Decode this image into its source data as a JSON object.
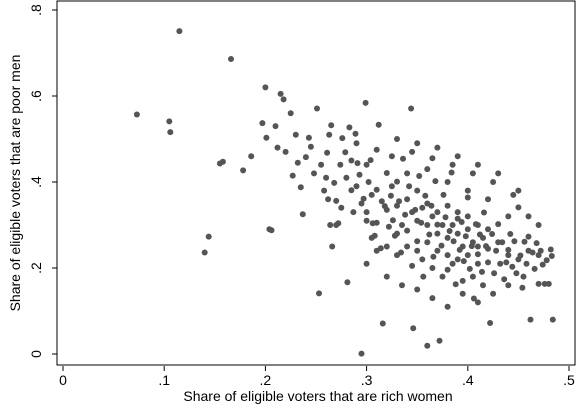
{
  "chart_data": {
    "type": "scatter",
    "title": "",
    "xlabel": "Share of eligible voters that are rich women",
    "ylabel": "Share of eligible voters that are poor men",
    "xlim": [
      0,
      0.5
    ],
    "ylim": [
      0,
      0.8
    ],
    "xticks": [
      {
        "value": 0,
        "label": "0"
      },
      {
        "value": 0.1,
        "label": ".1"
      },
      {
        "value": 0.2,
        "label": ".2"
      },
      {
        "value": 0.3,
        "label": ".3"
      },
      {
        "value": 0.4,
        "label": ".4"
      },
      {
        "value": 0.5,
        "label": ".5"
      }
    ],
    "yticks": [
      {
        "value": 0,
        "label": "0"
      },
      {
        "value": 0.2,
        "label": ".2"
      },
      {
        "value": 0.4,
        "label": ".4"
      },
      {
        "value": 0.6,
        "label": ".6"
      },
      {
        "value": 0.8,
        "label": ".8"
      }
    ],
    "grid": false,
    "marker_color": "#555555",
    "points": [
      [
        0.073,
        0.557
      ],
      [
        0.105,
        0.541
      ],
      [
        0.106,
        0.516
      ],
      [
        0.115,
        0.751
      ],
      [
        0.14,
        0.236
      ],
      [
        0.144,
        0.273
      ],
      [
        0.155,
        0.443
      ],
      [
        0.158,
        0.447
      ],
      [
        0.166,
        0.686
      ],
      [
        0.178,
        0.427
      ],
      [
        0.186,
        0.46
      ],
      [
        0.197,
        0.537
      ],
      [
        0.2,
        0.62
      ],
      [
        0.201,
        0.503
      ],
      [
        0.204,
        0.29
      ],
      [
        0.206,
        0.288
      ],
      [
        0.21,
        0.53
      ],
      [
        0.212,
        0.48
      ],
      [
        0.215,
        0.605
      ],
      [
        0.218,
        0.592
      ],
      [
        0.22,
        0.47
      ],
      [
        0.225,
        0.56
      ],
      [
        0.227,
        0.415
      ],
      [
        0.23,
        0.51
      ],
      [
        0.232,
        0.445
      ],
      [
        0.235,
        0.388
      ],
      [
        0.237,
        0.325
      ],
      [
        0.24,
        0.458
      ],
      [
        0.243,
        0.503
      ],
      [
        0.245,
        0.482
      ],
      [
        0.248,
        0.42
      ],
      [
        0.251,
        0.571
      ],
      [
        0.253,
        0.141
      ],
      [
        0.255,
        0.44
      ],
      [
        0.258,
        0.38
      ],
      [
        0.261,
        0.468
      ],
      [
        0.263,
        0.51
      ],
      [
        0.265,
        0.532
      ],
      [
        0.268,
        0.398
      ],
      [
        0.27,
        0.356
      ],
      [
        0.272,
        0.304
      ],
      [
        0.274,
        0.44
      ],
      [
        0.276,
        0.502
      ],
      [
        0.279,
        0.469
      ],
      [
        0.281,
        0.167
      ],
      [
        0.283,
        0.527
      ],
      [
        0.285,
        0.381
      ],
      [
        0.287,
        0.33
      ],
      [
        0.289,
        0.512
      ],
      [
        0.291,
        0.444
      ],
      [
        0.293,
        0.417
      ],
      [
        0.295,
        0.001
      ],
      [
        0.297,
        0.361
      ],
      [
        0.299,
        0.584
      ],
      [
        0.3,
        0.33
      ],
      [
        0.302,
        0.4
      ],
      [
        0.304,
        0.451
      ],
      [
        0.306,
        0.304
      ],
      [
        0.308,
        0.275
      ],
      [
        0.31,
        0.382
      ],
      [
        0.312,
        0.533
      ],
      [
        0.314,
        0.246
      ],
      [
        0.316,
        0.071
      ],
      [
        0.318,
        0.344
      ],
      [
        0.32,
        0.421
      ],
      [
        0.322,
        0.296
      ],
      [
        0.324,
        0.368
      ],
      [
        0.326,
        0.311
      ],
      [
        0.328,
        0.275
      ],
      [
        0.33,
        0.401
      ],
      [
        0.332,
        0.355
      ],
      [
        0.334,
        0.236
      ],
      [
        0.336,
        0.454
      ],
      [
        0.338,
        0.324
      ],
      [
        0.34,
        0.287
      ],
      [
        0.342,
        0.39
      ],
      [
        0.344,
        0.571
      ],
      [
        0.346,
        0.06
      ],
      [
        0.348,
        0.335
      ],
      [
        0.35,
        0.262
      ],
      [
        0.352,
        0.414
      ],
      [
        0.354,
        0.305
      ],
      [
        0.356,
        0.18
      ],
      [
        0.358,
        0.368
      ],
      [
        0.36,
        0.019
      ],
      [
        0.362,
        0.278
      ],
      [
        0.364,
        0.345
      ],
      [
        0.366,
        0.226
      ],
      [
        0.368,
        0.402
      ],
      [
        0.37,
        0.301
      ],
      [
        0.372,
        0.031
      ],
      [
        0.374,
        0.252
      ],
      [
        0.376,
        0.37
      ],
      [
        0.378,
        0.318
      ],
      [
        0.38,
        0.196
      ],
      [
        0.382,
        0.286
      ],
      [
        0.384,
        0.422
      ],
      [
        0.386,
        0.262
      ],
      [
        0.388,
        0.162
      ],
      [
        0.39,
        0.33
      ],
      [
        0.392,
        0.242
      ],
      [
        0.394,
        0.307
      ],
      [
        0.396,
        0.216
      ],
      [
        0.398,
        0.274
      ],
      [
        0.4,
        0.364
      ],
      [
        0.402,
        0.198
      ],
      [
        0.404,
        0.251
      ],
      [
        0.406,
        0.129
      ],
      [
        0.408,
        0.302
      ],
      [
        0.41,
        0.232
      ],
      [
        0.412,
        0.278
      ],
      [
        0.414,
        0.191
      ],
      [
        0.416,
        0.329
      ],
      [
        0.418,
        0.251
      ],
      [
        0.42,
        0.213
      ],
      [
        0.422,
        0.072
      ],
      [
        0.424,
        0.279
      ],
      [
        0.426,
        0.188
      ],
      [
        0.428,
        0.24
      ],
      [
        0.43,
        0.302
      ],
      [
        0.432,
        0.21
      ],
      [
        0.434,
        0.26
      ],
      [
        0.436,
        0.174
      ],
      [
        0.438,
        0.213
      ],
      [
        0.44,
        0.242
      ],
      [
        0.442,
        0.279
      ],
      [
        0.444,
        0.203
      ],
      [
        0.446,
        0.262
      ],
      [
        0.448,
        0.188
      ],
      [
        0.45,
        0.341
      ],
      [
        0.452,
        0.229
      ],
      [
        0.454,
        0.154
      ],
      [
        0.456,
        0.261
      ],
      [
        0.458,
        0.21
      ],
      [
        0.46,
        0.273
      ],
      [
        0.462,
        0.08
      ],
      [
        0.464,
        0.236
      ],
      [
        0.466,
        0.198
      ],
      [
        0.468,
        0.258
      ],
      [
        0.47,
        0.163
      ],
      [
        0.472,
        0.24
      ],
      [
        0.474,
        0.208
      ],
      [
        0.476,
        0.163
      ],
      [
        0.478,
        0.218
      ],
      [
        0.48,
        0.163
      ],
      [
        0.482,
        0.243
      ],
      [
        0.483,
        0.228
      ],
      [
        0.484,
        0.08
      ],
      [
        0.3,
        0.44
      ],
      [
        0.305,
        0.37
      ],
      [
        0.31,
        0.305
      ],
      [
        0.315,
        0.355
      ],
      [
        0.32,
        0.335
      ],
      [
        0.325,
        0.39
      ],
      [
        0.33,
        0.345
      ],
      [
        0.335,
        0.3
      ],
      [
        0.34,
        0.36
      ],
      [
        0.345,
        0.33
      ],
      [
        0.35,
        0.31
      ],
      [
        0.355,
        0.34
      ],
      [
        0.36,
        0.3
      ],
      [
        0.365,
        0.32
      ],
      [
        0.37,
        0.28
      ],
      [
        0.375,
        0.3
      ],
      [
        0.38,
        0.27
      ],
      [
        0.385,
        0.3
      ],
      [
        0.39,
        0.28
      ],
      [
        0.395,
        0.25
      ],
      [
        0.4,
        0.29
      ],
      [
        0.405,
        0.26
      ],
      [
        0.41,
        0.25
      ],
      [
        0.415,
        0.27
      ],
      [
        0.42,
        0.245
      ],
      [
        0.33,
        0.28
      ],
      [
        0.34,
        0.25
      ],
      [
        0.35,
        0.24
      ],
      [
        0.36,
        0.26
      ],
      [
        0.37,
        0.24
      ],
      [
        0.38,
        0.23
      ],
      [
        0.39,
        0.22
      ],
      [
        0.4,
        0.23
      ],
      [
        0.41,
        0.21
      ],
      [
        0.34,
        0.42
      ],
      [
        0.36,
        0.43
      ],
      [
        0.38,
        0.4
      ],
      [
        0.4,
        0.38
      ],
      [
        0.42,
        0.36
      ],
      [
        0.44,
        0.32
      ],
      [
        0.32,
        0.25
      ],
      [
        0.33,
        0.23
      ],
      [
        0.345,
        0.205
      ],
      [
        0.355,
        0.22
      ],
      [
        0.365,
        0.2
      ],
      [
        0.375,
        0.18
      ],
      [
        0.385,
        0.21
      ],
      [
        0.395,
        0.17
      ],
      [
        0.405,
        0.18
      ],
      [
        0.415,
        0.16
      ],
      [
        0.31,
        0.475
      ],
      [
        0.325,
        0.46
      ],
      [
        0.345,
        0.47
      ],
      [
        0.365,
        0.455
      ],
      [
        0.385,
        0.44
      ],
      [
        0.405,
        0.42
      ],
      [
        0.425,
        0.4
      ],
      [
        0.445,
        0.37
      ],
      [
        0.46,
        0.32
      ],
      [
        0.47,
        0.3
      ],
      [
        0.29,
        0.39
      ],
      [
        0.295,
        0.35
      ],
      [
        0.3,
        0.31
      ],
      [
        0.305,
        0.27
      ],
      [
        0.31,
        0.24
      ],
      [
        0.27,
        0.3
      ],
      [
        0.275,
        0.34
      ],
      [
        0.28,
        0.41
      ],
      [
        0.285,
        0.45
      ],
      [
        0.29,
        0.49
      ],
      [
        0.26,
        0.41
      ],
      [
        0.262,
        0.36
      ],
      [
        0.264,
        0.3
      ],
      [
        0.266,
        0.25
      ],
      [
        0.3,
        0.21
      ],
      [
        0.32,
        0.18
      ],
      [
        0.335,
        0.16
      ],
      [
        0.35,
        0.15
      ],
      [
        0.365,
        0.13
      ],
      [
        0.38,
        0.11
      ],
      [
        0.395,
        0.14
      ],
      [
        0.41,
        0.12
      ],
      [
        0.425,
        0.14
      ],
      [
        0.44,
        0.16
      ],
      [
        0.455,
        0.18
      ],
      [
        0.33,
        0.5
      ],
      [
        0.35,
        0.49
      ],
      [
        0.37,
        0.48
      ],
      [
        0.39,
        0.46
      ],
      [
        0.41,
        0.44
      ],
      [
        0.43,
        0.42
      ],
      [
        0.45,
        0.38
      ],
      [
        0.35,
        0.38
      ],
      [
        0.36,
        0.35
      ],
      [
        0.37,
        0.33
      ],
      [
        0.38,
        0.345
      ],
      [
        0.39,
        0.315
      ],
      [
        0.4,
        0.32
      ],
      [
        0.41,
        0.3
      ],
      [
        0.42,
        0.29
      ],
      [
        0.43,
        0.26
      ],
      [
        0.44,
        0.23
      ],
      [
        0.45,
        0.22
      ],
      [
        0.46,
        0.24
      ],
      [
        0.47,
        0.23
      ]
    ]
  }
}
